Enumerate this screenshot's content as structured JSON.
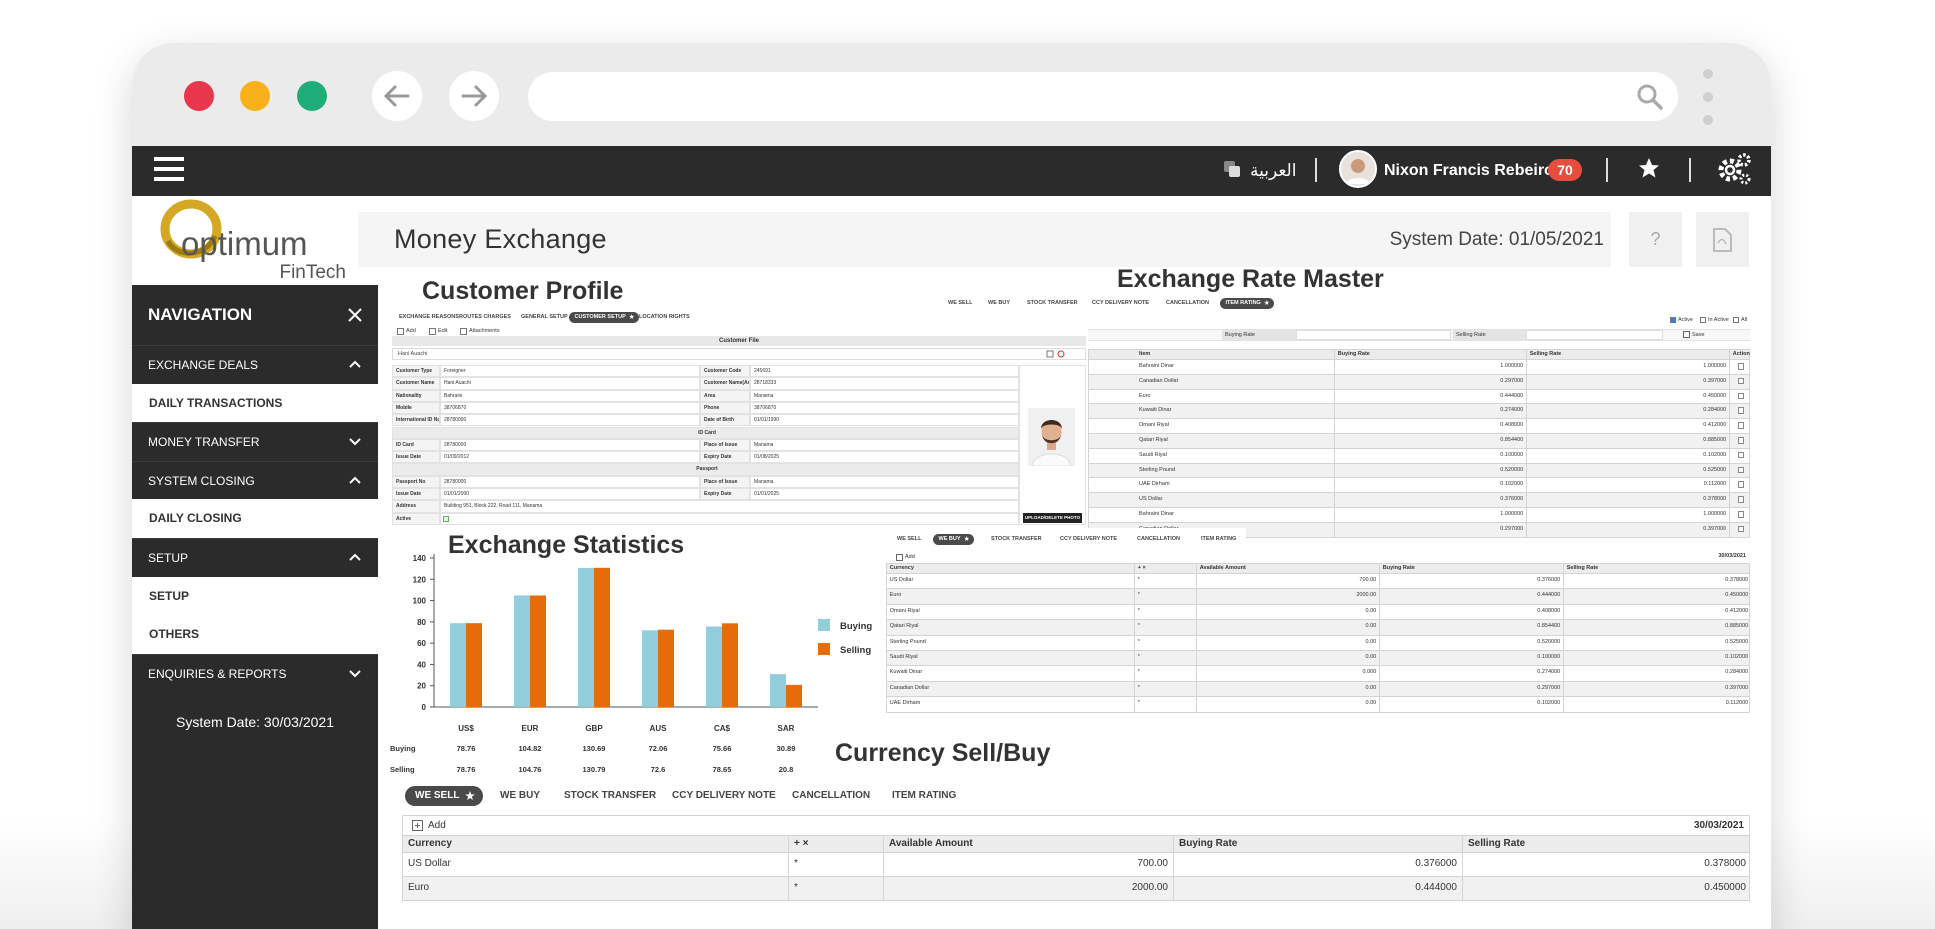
{
  "header": {
    "language": "العربية",
    "user": "Nixon Francis Rebeiro",
    "notifications": "70"
  },
  "logo": {
    "brand": "optimum",
    "tagline": "FinTech"
  },
  "navigation": {
    "title": "NAVIGATION",
    "groups": [
      {
        "label": "EXCHANGE DEALS",
        "items": [
          "DAILY TRANSACTIONS"
        ]
      },
      {
        "label": "MONEY TRANSFER",
        "items": []
      },
      {
        "label": "SYSTEM CLOSING",
        "items": [
          "DAILY CLOSING"
        ]
      },
      {
        "label": "SETUP",
        "items": [
          "SETUP",
          "OTHERS"
        ]
      },
      {
        "label": "ENQUIRIES & REPORTS",
        "items": []
      }
    ],
    "system_date": "System Date: 30/03/2021"
  },
  "page": {
    "title": "Money Exchange",
    "system_date": "System Date: 01/05/2021",
    "help": "?"
  },
  "customer_profile": {
    "title": "Customer Profile",
    "tabs": [
      "EXCHANGE REASONS",
      "ROUTES CHARGES",
      "GENERAL SETUP",
      "CUSTOMER SETUP",
      "LOCATION RIGHTS"
    ],
    "active_tab": 3,
    "toolbar": [
      "Add",
      "Edit",
      "Attachments"
    ],
    "form_title": "Customer File",
    "search": "Hani Auachi",
    "form": [
      {
        "rows": [
          [
            "Customer Type",
            "Foreigner",
            "Customer Code",
            "245691"
          ],
          [
            "Customer Name",
            "Hani Auachi",
            "Customer Name(Arabic)",
            "28718333"
          ],
          [
            "Nationality",
            "Bahraini",
            "Area",
            "Manama"
          ],
          [
            "Mobile",
            "38706870",
            "Phone",
            "38706870"
          ],
          [
            "International ID No",
            "28780000",
            "Date of Birth",
            "01/01/1990"
          ]
        ]
      },
      {
        "heading": "ID Card",
        "rows": [
          [
            "ID Card",
            "28780000",
            "Place of Issue",
            "Manama"
          ],
          [
            "Issue Date",
            "01/09/2012",
            "Expiry Date",
            "01/08/2025"
          ]
        ]
      },
      {
        "heading": "Passport",
        "rows": [
          [
            "Passport No",
            "28780000",
            "Place of Issue",
            "Manama"
          ],
          [
            "Issue Date",
            "01/01/2000",
            "Expiry Date",
            "01/01/2025"
          ],
          [
            "Address",
            "Building 951, Block 222, Road 111, Manama"
          ]
        ]
      }
    ],
    "active_label": "Active",
    "upload_button": "UPLOAD/DELETE PHOTO"
  },
  "rate_master": {
    "title": "Exchange Rate Master",
    "tabs": [
      "WE SELL",
      "WE BUY",
      "STOCK TRANSFER",
      "CCY DELIVERY NOTE",
      "CANCELLATION",
      "ITEM RATING"
    ],
    "active_tab": 5,
    "filters": [
      "Active",
      "In Active",
      "All"
    ],
    "inputs": [
      "Buying Rate",
      "Selling Rate"
    ],
    "save": "Save",
    "columns": [
      "Item",
      "Buying Rate",
      "Selling Rate",
      "Action"
    ],
    "rows": [
      [
        "Bahraini Dinar",
        "1.000000",
        "1.000000"
      ],
      [
        "Canadian Dollar",
        "0.297000",
        "0.397000"
      ],
      [
        "Euro",
        "0.444000",
        "0.450000"
      ],
      [
        "Kuwaiti Dinar",
        "0.274000",
        "0.284000"
      ],
      [
        "Omani Riyal",
        "0.408000",
        "0.412000"
      ],
      [
        "Qatari Riyal",
        "0.854400",
        "0.885000"
      ],
      [
        "Saudi Riyal",
        "0.100000",
        "0.102000"
      ],
      [
        "Sterling Pound",
        "0.520000",
        "0.525000"
      ],
      [
        "UAE Dirham",
        "0.102000",
        "0.112000"
      ],
      [
        "US Dollar",
        "0.376000",
        "0.378000"
      ],
      [
        "Bahraini Dinar",
        "1.000000",
        "1.000000"
      ],
      [
        "Canadian Dollar",
        "0.297000",
        "0.397000"
      ]
    ]
  },
  "exchange_statistics": {
    "type": "bar",
    "title": "Exchange Statistics",
    "categories": [
      "US$",
      "EUR",
      "GBP",
      "AUS",
      "CA$",
      "SAR"
    ],
    "series": [
      {
        "name": "Buying",
        "color": "#92cddc",
        "values": [
          78.76,
          104.82,
          130.69,
          72.06,
          75.66,
          30.89
        ]
      },
      {
        "name": "Selling",
        "color": "#e46c0a",
        "values": [
          78.76,
          104.76,
          130.79,
          72.6,
          78.65,
          20.8
        ]
      }
    ],
    "ylim": [
      0,
      140
    ],
    "yticks": [
      0,
      20,
      40,
      60,
      80,
      100,
      120,
      140
    ]
  },
  "stock_panel": {
    "tabs": [
      "WE SELL",
      "WE BUY",
      "STOCK TRANSFER",
      "CCY DELIVERY NOTE",
      "CANCELLATION",
      "ITEM RATING"
    ],
    "active_tab": 1,
    "add": "Add",
    "date": "30/03/2021",
    "columns": [
      "Currency",
      "+ ×",
      "Available Amount",
      "Buying Rate",
      "Selling Rate"
    ],
    "rows": [
      [
        "US Dollar",
        "*",
        "700.00",
        "0.376000",
        "0.378000"
      ],
      [
        "Euro",
        "*",
        "2000.00",
        "0.444000",
        "0.450000"
      ],
      [
        "Omani Riyal",
        "*",
        "0.00",
        "0.408000",
        "0.412000"
      ],
      [
        "Qatari Riyal",
        "*",
        "0.00",
        "0.854400",
        "0.885000"
      ],
      [
        "Sterling Pound",
        "*",
        "0.00",
        "0.520000",
        "0.525000"
      ],
      [
        "Saudi Riyal",
        "*",
        "0.00",
        "0.100000",
        "0.102000"
      ],
      [
        "Kuwaiti Dinar",
        "*",
        "0.000",
        "0.274000",
        "0.284000"
      ],
      [
        "Canadian Dollar",
        "*",
        "0.00",
        "0.297000",
        "0.397000"
      ],
      [
        "UAE Dirham",
        "*",
        "0.00",
        "0.102000",
        "0.112000"
      ]
    ]
  },
  "currency_sell_buy": {
    "title": "Currency Sell/Buy",
    "tabs": [
      "WE SELL",
      "WE BUY",
      "STOCK TRANSFER",
      "CCY DELIVERY NOTE",
      "CANCELLATION",
      "ITEM RATING"
    ],
    "active_tab": 0,
    "add": "Add",
    "date": "30/03/2021",
    "columns": [
      "Currency",
      "+ ×",
      "Available Amount",
      "Buying Rate",
      "Selling Rate"
    ],
    "rows": [
      [
        "US Dollar",
        "*",
        "700.00",
        "0.376000",
        "0.378000"
      ],
      [
        "Euro",
        "*",
        "2000.00",
        "0.444000",
        "0.450000"
      ]
    ]
  }
}
